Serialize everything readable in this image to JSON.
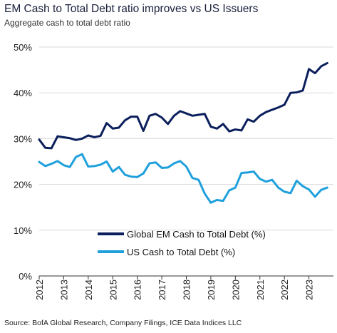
{
  "title": "EM Cash to Total Debt ratio improves vs US Issuers",
  "subtitle": "Aggregate cash to total debt ratio",
  "source": "Source: BofA Global Research, Company Filings, ICE Data Indices LLC",
  "colors": {
    "em": "#0b1f5c",
    "us": "#1fa0dc",
    "grid": "#d9d9d9",
    "axis": "#333333"
  },
  "chart_data": {
    "type": "line",
    "title": "EM Cash to Total Debt ratio improves vs US Issuers",
    "subtitle": "Aggregate cash to total debt ratio",
    "xlabel": "",
    "ylabel": "",
    "ylim": [
      0,
      50
    ],
    "yticks": [
      "0%",
      "10%",
      "20%",
      "30%",
      "40%",
      "50%"
    ],
    "xticks": [
      "2012",
      "2013",
      "2014",
      "2015",
      "2016",
      "2017",
      "2018",
      "2019",
      "2020",
      "2021",
      "2022",
      "2023"
    ],
    "xlim": [
      2012,
      2024
    ],
    "grid": "horizontal",
    "legend": "bottom-center",
    "x": [
      2012.0,
      2012.25,
      2012.5,
      2012.75,
      2013.0,
      2013.25,
      2013.5,
      2013.75,
      2014.0,
      2014.25,
      2014.5,
      2014.75,
      2015.0,
      2015.25,
      2015.5,
      2015.75,
      2016.0,
      2016.25,
      2016.5,
      2016.75,
      2017.0,
      2017.25,
      2017.5,
      2017.75,
      2018.0,
      2018.25,
      2018.5,
      2018.75,
      2019.0,
      2019.25,
      2019.5,
      2019.75,
      2020.0,
      2020.25,
      2020.5,
      2020.75,
      2021.0,
      2021.25,
      2021.5,
      2021.75,
      2022.0,
      2022.25,
      2022.5,
      2022.75,
      2023.0,
      2023.25,
      2023.5,
      2023.75
    ],
    "series": [
      {
        "name": "Global EM Cash to Total Debt (%)",
        "values": [
          29.8,
          28.0,
          27.9,
          30.5,
          30.3,
          30.1,
          29.7,
          30.0,
          30.7,
          30.3,
          30.6,
          33.4,
          32.2,
          32.4,
          34.0,
          34.8,
          34.8,
          31.7,
          35.0,
          35.4,
          34.6,
          33.2,
          35.0,
          36.0,
          35.5,
          35.0,
          35.2,
          35.4,
          32.6,
          32.2,
          33.2,
          31.6,
          32.0,
          31.8,
          34.2,
          33.7,
          35.0,
          35.8,
          36.3,
          36.8,
          37.4,
          40.0,
          40.1,
          40.5,
          45.2,
          44.3,
          45.8,
          46.5
        ]
      },
      {
        "name": "US Cash to Total Debt (%)",
        "values": [
          24.9,
          24.0,
          24.5,
          25.1,
          24.2,
          23.8,
          26.0,
          26.6,
          23.9,
          24.0,
          24.3,
          25.0,
          22.8,
          23.8,
          22.1,
          21.7,
          21.6,
          22.4,
          24.6,
          24.8,
          23.6,
          23.7,
          24.6,
          25.1,
          23.9,
          21.4,
          21.0,
          18.0,
          16.0,
          16.6,
          16.4,
          18.7,
          19.3,
          22.5,
          22.6,
          22.8,
          21.2,
          20.6,
          21.0,
          19.3,
          18.4,
          18.1,
          20.8,
          19.6,
          18.9,
          17.3,
          18.8,
          19.3
        ]
      }
    ]
  }
}
